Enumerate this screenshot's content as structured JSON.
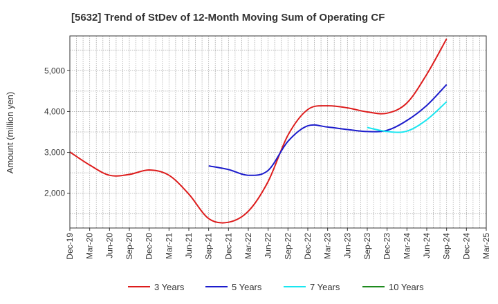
{
  "chart_data": {
    "type": "line",
    "title": "[5632]  Trend of StDev of 12-Month Moving Sum of Operating CF",
    "ylabel": "Amount (million yen)",
    "xlabel": "",
    "ylim": [
      1150,
      5850
    ],
    "yticks": [
      2000,
      3000,
      4000,
      5000
    ],
    "ytick_labels": [
      "2,000",
      "3,000",
      "4,000",
      "5,000"
    ],
    "x": [
      "Dec-19",
      "Mar-20",
      "Jun-20",
      "Sep-20",
      "Dec-20",
      "Mar-21",
      "Jun-21",
      "Sep-21",
      "Dec-21",
      "Mar-22",
      "Jun-22",
      "Sep-22",
      "Dec-22",
      "Mar-23",
      "Jun-23",
      "Sep-23",
      "Dec-23",
      "Mar-24",
      "Jun-24",
      "Sep-24",
      "Dec-24",
      "Mar-25"
    ],
    "grid": true,
    "legend_position": "bottom",
    "series": [
      {
        "name": "3 Years",
        "color": "#dd1c1c",
        "values": [
          3010,
          2690,
          2440,
          2460,
          2570,
          2440,
          1980,
          1380,
          1290,
          1560,
          2290,
          3420,
          4050,
          4140,
          4090,
          3990,
          3960,
          4210,
          4910,
          5780,
          null,
          null
        ]
      },
      {
        "name": "5 Years",
        "color": "#1c1ccc",
        "values": [
          null,
          null,
          null,
          null,
          null,
          null,
          null,
          2670,
          2580,
          2440,
          2560,
          3270,
          3650,
          3620,
          3560,
          3510,
          3540,
          3780,
          4150,
          4660,
          null,
          null
        ]
      },
      {
        "name": "7 Years",
        "color": "#19e6f0",
        "values": [
          null,
          null,
          null,
          null,
          null,
          null,
          null,
          null,
          null,
          null,
          null,
          null,
          null,
          null,
          null,
          3610,
          3510,
          3520,
          3800,
          4240,
          null,
          null
        ]
      },
      {
        "name": "10 Years",
        "color": "#1e8a1e",
        "values": [
          null,
          null,
          null,
          null,
          null,
          null,
          null,
          null,
          null,
          null,
          null,
          null,
          null,
          null,
          null,
          null,
          null,
          null,
          null,
          null,
          null,
          null
        ]
      }
    ]
  }
}
